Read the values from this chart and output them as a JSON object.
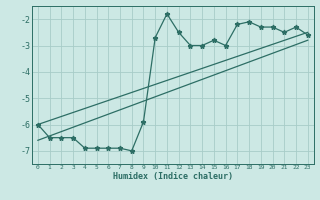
{
  "xlabel": "Humidex (Indice chaleur)",
  "bg_color": "#cce8e4",
  "line_color": "#2d6e65",
  "grid_color": "#a8ccc8",
  "xlim": [
    -0.5,
    23.5
  ],
  "ylim": [
    -7.5,
    -1.5
  ],
  "yticks": [
    -7,
    -6,
    -5,
    -4,
    -3,
    -2
  ],
  "xticks": [
    0,
    1,
    2,
    3,
    4,
    5,
    6,
    7,
    8,
    9,
    10,
    11,
    12,
    13,
    14,
    15,
    16,
    17,
    18,
    19,
    20,
    21,
    22,
    23
  ],
  "series1_x": [
    0,
    1,
    2,
    3,
    4,
    5,
    6,
    7,
    8,
    9,
    10,
    11,
    12,
    13,
    14,
    15,
    16,
    17,
    18,
    19,
    20,
    21,
    22,
    23
  ],
  "series1_y": [
    -6.0,
    -6.5,
    -6.5,
    -6.5,
    -6.9,
    -6.9,
    -6.9,
    -6.9,
    -7.0,
    -5.9,
    -2.7,
    -1.8,
    -2.5,
    -3.0,
    -3.0,
    -2.8,
    -3.0,
    -2.2,
    -2.1,
    -2.3,
    -2.3,
    -2.5,
    -2.3,
    -2.6
  ],
  "series2_x": [
    0,
    23
  ],
  "series2_y": [
    -6.0,
    -2.5
  ],
  "series3_x": [
    0,
    23
  ],
  "series3_y": [
    -6.6,
    -2.8
  ]
}
